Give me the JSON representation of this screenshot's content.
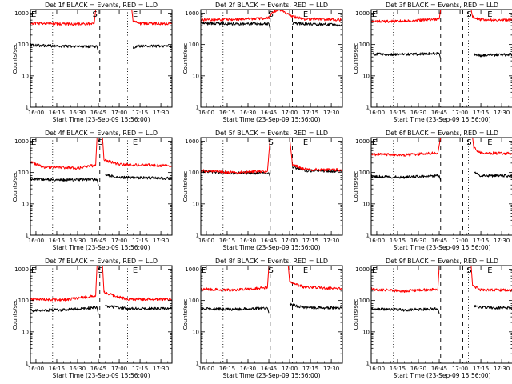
{
  "figure": {
    "ylabel": "Counts/sec",
    "xlabel": "Start Time (23-Sep-09 15:56:00)",
    "x_ticks": [
      "16:00",
      "16:15",
      "16:30",
      "16:45",
      "17:00",
      "17:15",
      "17:30"
    ],
    "y_tick_labels": [
      "1",
      "10",
      "100",
      "1000"
    ],
    "colors": {
      "events": "#000000",
      "lld": "#ff0000"
    }
  },
  "chart_data": [
    {
      "type": "line",
      "title": "Det 1f BLACK = Events, RED = LLD",
      "xlim": [
        "15:56",
        "17:38"
      ],
      "ylim": [
        1,
        1300
      ],
      "yscale": "log",
      "grid": false,
      "events": [
        {
          "time": "15:56",
          "label": "E"
        },
        {
          "time": "16:43",
          "label": "S"
        },
        {
          "time": "17:12",
          "label": "E"
        }
      ],
      "dotted_lines": [
        "16:12",
        "17:06"
      ],
      "dashed_lines": [
        "16:46",
        "17:02"
      ],
      "series": [
        {
          "name": "BLACK = Events",
          "color": "#000000",
          "points": [
            [
              "15:56",
              95
            ],
            [
              "16:20",
              88
            ],
            [
              "16:44",
              85
            ],
            [
              "16:45",
              55
            ]
          ]
        },
        {
          "name": "BLACK = Events",
          "color": "#000000",
          "points": [
            [
              "17:10",
              80
            ],
            [
              "17:15",
              90
            ],
            [
              "17:38",
              88
            ]
          ]
        },
        {
          "name": "RED = LLD",
          "color": "#ff0000",
          "points": [
            [
              "15:56",
              480
            ],
            [
              "16:20",
              450
            ],
            [
              "16:42",
              470
            ],
            [
              "16:43",
              1300
            ]
          ]
        },
        {
          "name": "RED = LLD",
          "color": "#ff0000",
          "points": [
            [
              "17:09",
              1300
            ],
            [
              "17:10",
              560
            ],
            [
              "17:15",
              470
            ],
            [
              "17:38",
              470
            ]
          ]
        }
      ]
    },
    {
      "type": "line",
      "title": "Det 2f BLACK = Events, RED = LLD",
      "xlim": [
        "15:56",
        "17:38"
      ],
      "ylim": [
        1,
        1300
      ],
      "yscale": "log",
      "grid": false,
      "events": [
        {
          "time": "16:47",
          "label": "S"
        },
        {
          "time": "17:12",
          "label": "E"
        }
      ],
      "dotted_lines": [
        "16:12",
        "17:06"
      ],
      "dashed_lines": [
        "16:46",
        "17:02"
      ],
      "series": [
        {
          "name": "BLACK = Events",
          "color": "#000000",
          "points": [
            [
              "15:56",
              470
            ],
            [
              "16:30",
              460
            ],
            [
              "16:45",
              470
            ],
            [
              "16:46",
              300
            ]
          ]
        },
        {
          "name": "BLACK = Events",
          "color": "#000000",
          "points": [
            [
              "17:02",
              470
            ],
            [
              "17:20",
              450
            ],
            [
              "17:38",
              420
            ]
          ]
        },
        {
          "name": "RED = LLD",
          "color": "#ff0000",
          "points": [
            [
              "15:56",
              620
            ],
            [
              "16:30",
              650
            ],
            [
              "16:45",
              700
            ],
            [
              "16:48",
              1100
            ],
            [
              "16:53",
              1300
            ],
            [
              "16:58",
              1000
            ],
            [
              "17:02",
              780
            ],
            [
              "17:10",
              650
            ],
            [
              "17:38",
              620
            ]
          ]
        }
      ]
    },
    {
      "type": "line",
      "title": "Det 3f BLACK = Events, RED = LLD",
      "xlim": [
        "15:56",
        "17:38"
      ],
      "ylim": [
        1,
        1300
      ],
      "yscale": "log",
      "grid": false,
      "events": [
        {
          "time": "15:56",
          "label": "E"
        },
        {
          "time": "17:07",
          "label": "S"
        },
        {
          "time": "17:22",
          "label": "E"
        }
      ],
      "dotted_lines": [
        "16:12",
        "17:06"
      ],
      "dashed_lines": [
        "16:46",
        "17:02"
      ],
      "series": [
        {
          "name": "BLACK = Events",
          "color": "#000000",
          "points": [
            [
              "15:56",
              50
            ],
            [
              "16:20",
              48
            ],
            [
              "16:45",
              52
            ],
            [
              "16:46",
              35
            ]
          ]
        },
        {
          "name": "BLACK = Events",
          "color": "#000000",
          "points": [
            [
              "17:10",
              50
            ],
            [
              "17:15",
              45
            ],
            [
              "17:38",
              48
            ]
          ]
        },
        {
          "name": "RED = LLD",
          "color": "#ff0000",
          "points": [
            [
              "15:56",
              540
            ],
            [
              "16:20",
              560
            ],
            [
              "16:45",
              650
            ],
            [
              "16:46",
              1300
            ]
          ]
        },
        {
          "name": "RED = LLD",
          "color": "#ff0000",
          "points": [
            [
              "17:08",
              1300
            ],
            [
              "17:09",
              750
            ],
            [
              "17:15",
              620
            ],
            [
              "17:38",
              600
            ]
          ]
        }
      ]
    },
    {
      "type": "line",
      "title": "Det 4f BLACK = Events, RED = LLD",
      "xlim": [
        "15:56",
        "17:38"
      ],
      "ylim": [
        1,
        1300
      ],
      "yscale": "log",
      "grid": false,
      "events": [
        {
          "time": "15:56",
          "label": "E"
        },
        {
          "time": "16:47",
          "label": "S"
        },
        {
          "time": "17:12",
          "label": "E"
        }
      ],
      "dotted_lines": [
        "16:12",
        "17:06"
      ],
      "dashed_lines": [
        "16:46",
        "17:02"
      ],
      "series": [
        {
          "name": "BLACK = Events",
          "color": "#000000",
          "points": [
            [
              "15:56",
              62
            ],
            [
              "16:20",
              58
            ],
            [
              "16:44",
              60
            ],
            [
              "16:45",
              38
            ]
          ]
        },
        {
          "name": "BLACK = Events",
          "color": "#000000",
          "points": [
            [
              "16:50",
              85
            ],
            [
              "17:00",
              70
            ],
            [
              "17:38",
              65
            ]
          ]
        },
        {
          "name": "RED = LLD",
          "color": "#ff0000",
          "points": [
            [
              "15:56",
              220
            ],
            [
              "16:05",
              150
            ],
            [
              "16:30",
              140
            ],
            [
              "16:43",
              170
            ],
            [
              "16:44",
              1300
            ]
          ]
        },
        {
          "name": "RED = LLD",
          "color": "#ff0000",
          "points": [
            [
              "16:48",
              1300
            ],
            [
              "16:49",
              250
            ],
            [
              "17:00",
              180
            ],
            [
              "17:38",
              165
            ]
          ]
        }
      ]
    },
    {
      "type": "line",
      "title": "Det 5f BLACK = Events, RED = LLD",
      "xlim": [
        "15:56",
        "17:38"
      ],
      "ylim": [
        1,
        1300
      ],
      "yscale": "log",
      "grid": false,
      "events": [
        {
          "time": "16:47",
          "label": "S"
        },
        {
          "time": "17:12",
          "label": "E"
        }
      ],
      "dotted_lines": [
        "16:12",
        "17:06"
      ],
      "dashed_lines": [
        "16:46",
        "17:02"
      ],
      "series": [
        {
          "name": "BLACK = Events",
          "color": "#000000",
          "points": [
            [
              "15:56",
              110
            ],
            [
              "16:20",
              95
            ],
            [
              "16:45",
              98
            ],
            [
              "16:46",
              70
            ]
          ]
        },
        {
          "name": "BLACK = Events",
          "color": "#000000",
          "points": [
            [
              "17:02",
              150
            ],
            [
              "17:12",
              115
            ],
            [
              "17:38",
              110
            ]
          ]
        },
        {
          "name": "RED = LLD",
          "color": "#ff0000",
          "points": [
            [
              "15:56",
              115
            ],
            [
              "16:20",
              100
            ],
            [
              "16:44",
              110
            ],
            [
              "16:46",
              1300
            ]
          ]
        },
        {
          "name": "RED = LLD",
          "color": "#ff0000",
          "points": [
            [
              "17:00",
              1300
            ],
            [
              "17:02",
              180
            ],
            [
              "17:12",
              125
            ],
            [
              "17:38",
              120
            ]
          ]
        }
      ]
    },
    {
      "type": "line",
      "title": "Det 6f BLACK = Events, RED = LLD",
      "xlim": [
        "15:56",
        "17:38"
      ],
      "ylim": [
        1,
        1300
      ],
      "yscale": "log",
      "grid": false,
      "events": [
        {
          "time": "15:56",
          "label": "E"
        },
        {
          "time": "17:07",
          "label": "S"
        },
        {
          "time": "17:22",
          "label": "E"
        }
      ],
      "dotted_lines": [
        "16:12",
        "17:06"
      ],
      "dashed_lines": [
        "16:46",
        "17:02"
      ],
      "series": [
        {
          "name": "BLACK = Events",
          "color": "#000000",
          "points": [
            [
              "15:56",
              75
            ],
            [
              "16:20",
              70
            ],
            [
              "16:45",
              80
            ],
            [
              "16:46",
              55
            ]
          ]
        },
        {
          "name": "BLACK = Events",
          "color": "#000000",
          "points": [
            [
              "17:10",
              100
            ],
            [
              "17:15",
              80
            ],
            [
              "17:38",
              78
            ]
          ]
        },
        {
          "name": "RED = LLD",
          "color": "#ff0000",
          "points": [
            [
              "15:56",
              380
            ],
            [
              "16:20",
              360
            ],
            [
              "16:44",
              420
            ],
            [
              "16:46",
              1300
            ]
          ]
        },
        {
          "name": "RED = LLD",
          "color": "#ff0000",
          "points": [
            [
              "17:09",
              1300
            ],
            [
              "17:10",
              600
            ],
            [
              "17:15",
              420
            ],
            [
              "17:38",
              400
            ]
          ]
        }
      ]
    },
    {
      "type": "line",
      "title": "Det 7f BLACK = Events, RED = LLD",
      "xlim": [
        "15:56",
        "17:38"
      ],
      "ylim": [
        1,
        1300
      ],
      "yscale": "log",
      "grid": false,
      "events": [
        {
          "time": "15:56",
          "label": "E"
        },
        {
          "time": "16:47",
          "label": "S"
        },
        {
          "time": "17:12",
          "label": "E"
        }
      ],
      "dotted_lines": [
        "16:12",
        "17:06"
      ],
      "dashed_lines": [
        "16:46",
        "17:02"
      ],
      "series": [
        {
          "name": "BLACK = Events",
          "color": "#000000",
          "points": [
            [
              "15:56",
              48
            ],
            [
              "16:20",
              50
            ],
            [
              "16:44",
              60
            ],
            [
              "16:45",
              35
            ]
          ]
        },
        {
          "name": "BLACK = Events",
          "color": "#000000",
          "points": [
            [
              "16:50",
              68
            ],
            [
              "17:05",
              55
            ],
            [
              "17:38",
              55
            ]
          ]
        },
        {
          "name": "RED = LLD",
          "color": "#ff0000",
          "points": [
            [
              "15:56",
              110
            ],
            [
              "16:20",
              105
            ],
            [
              "16:43",
              140
            ],
            [
              "16:44",
              1300
            ]
          ]
        },
        {
          "name": "RED = LLD",
          "color": "#ff0000",
          "points": [
            [
              "16:48",
              1300
            ],
            [
              "16:49",
              180
            ],
            [
              "17:05",
              110
            ],
            [
              "17:38",
              110
            ]
          ]
        }
      ]
    },
    {
      "type": "line",
      "title": "Det 8f BLACK = Events, RED = LLD",
      "xlim": [
        "15:56",
        "17:38"
      ],
      "ylim": [
        1,
        1300
      ],
      "yscale": "log",
      "grid": false,
      "events": [
        {
          "time": "15:56",
          "label": "E"
        },
        {
          "time": "16:47",
          "label": "S"
        },
        {
          "time": "17:12",
          "label": "E"
        }
      ],
      "dotted_lines": [
        "16:12",
        "17:06"
      ],
      "dashed_lines": [
        "16:46",
        "17:02"
      ],
      "series": [
        {
          "name": "BLACK = Events",
          "color": "#000000",
          "points": [
            [
              "15:56",
              55
            ],
            [
              "16:20",
              52
            ],
            [
              "16:44",
              58
            ],
            [
              "16:45",
              40
            ]
          ]
        },
        {
          "name": "BLACK = Events",
          "color": "#000000",
          "points": [
            [
              "17:00",
              75
            ],
            [
              "17:10",
              60
            ],
            [
              "17:38",
              58
            ]
          ]
        },
        {
          "name": "RED = LLD",
          "color": "#ff0000",
          "points": [
            [
              "15:56",
              230
            ],
            [
              "16:20",
              215
            ],
            [
              "16:44",
              260
            ],
            [
              "16:45",
              1300
            ]
          ]
        },
        {
          "name": "RED = LLD",
          "color": "#ff0000",
          "points": [
            [
              "16:59",
              1300
            ],
            [
              "17:00",
              400
            ],
            [
              "17:10",
              270
            ],
            [
              "17:38",
              240
            ]
          ]
        }
      ]
    },
    {
      "type": "line",
      "title": "Det 9f BLACK = Events, RED = LLD",
      "xlim": [
        "15:56",
        "17:38"
      ],
      "ylim": [
        1,
        1300
      ],
      "yscale": "log",
      "grid": false,
      "events": [
        {
          "time": "15:56",
          "label": "E"
        },
        {
          "time": "17:07",
          "label": "S"
        },
        {
          "time": "17:22",
          "label": "E"
        }
      ],
      "dotted_lines": [
        "16:12",
        "17:06"
      ],
      "dashed_lines": [
        "16:46",
        "17:02"
      ],
      "series": [
        {
          "name": "BLACK = Events",
          "color": "#000000",
          "points": [
            [
              "15:56",
              55
            ],
            [
              "16:20",
              50
            ],
            [
              "16:44",
              55
            ],
            [
              "16:45",
              38
            ]
          ]
        },
        {
          "name": "BLACK = Events",
          "color": "#000000",
          "points": [
            [
              "17:10",
              68
            ],
            [
              "17:15",
              60
            ],
            [
              "17:38",
              58
            ]
          ]
        },
        {
          "name": "RED = LLD",
          "color": "#ff0000",
          "points": [
            [
              "15:56",
              230
            ],
            [
              "16:20",
              200
            ],
            [
              "16:44",
              230
            ],
            [
              "16:45",
              1300
            ]
          ]
        },
        {
          "name": "RED = LLD",
          "color": "#ff0000",
          "points": [
            [
              "17:08",
              1300
            ],
            [
              "17:09",
              300
            ],
            [
              "17:15",
              220
            ],
            [
              "17:38",
              210
            ]
          ]
        }
      ]
    }
  ]
}
